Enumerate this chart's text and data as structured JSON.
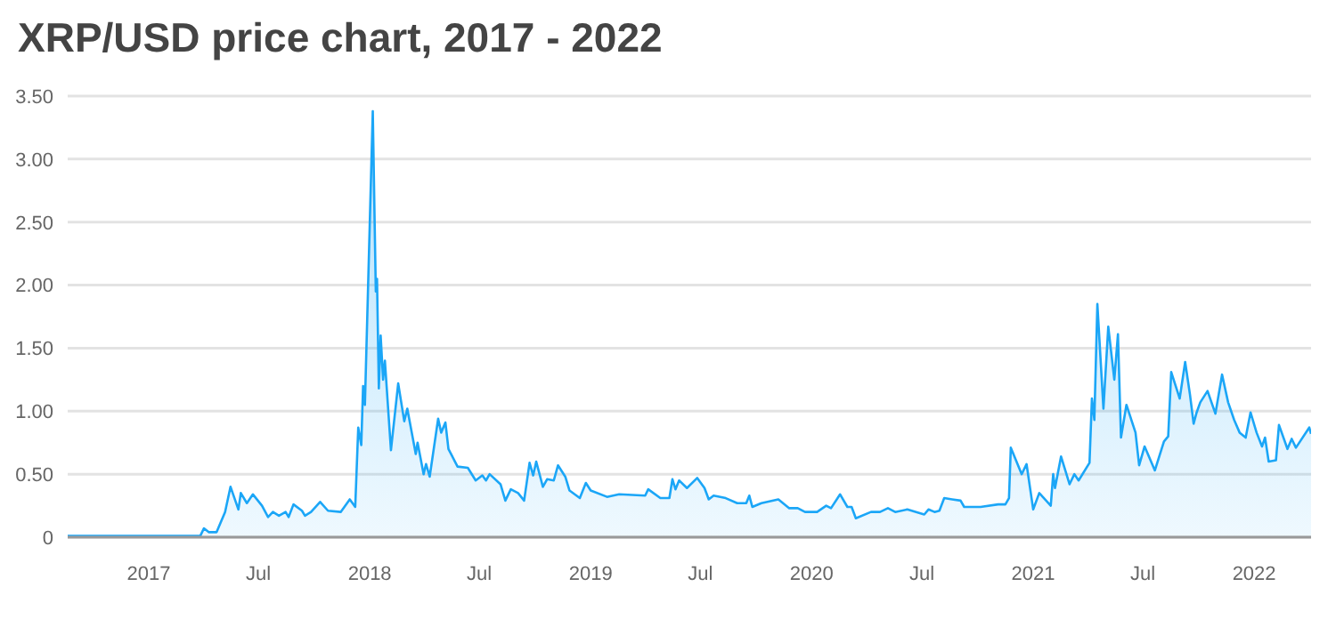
{
  "chart_data": {
    "type": "area",
    "title": "XRP/USD price chart, 2017 - 2022",
    "color": "#1ba6f7",
    "grid": "y",
    "x": [
      "2016-08-20",
      "2017-03-27",
      "2017-04-02",
      "2017-04-10",
      "2017-04-23",
      "2017-05-07",
      "2017-05-16",
      "2017-05-29",
      "2017-06-02",
      "2017-06-12",
      "2017-06-22",
      "2017-07-07",
      "2017-07-17",
      "2017-07-25",
      "2017-08-04",
      "2017-08-15",
      "2017-08-20",
      "2017-08-28",
      "2017-09-11",
      "2017-09-16",
      "2017-09-26",
      "2017-10-11",
      "2017-10-24",
      "2017-11-14",
      "2017-11-29",
      "2017-12-08",
      "2017-12-13",
      "2017-12-18",
      "2017-12-21",
      "2017-12-24",
      "2018-01-06",
      "2018-01-11",
      "2018-01-13",
      "2018-01-16",
      "2018-01-19",
      "2018-01-23",
      "2018-01-26",
      "2018-02-05",
      "2018-02-17",
      "2018-02-27",
      "2018-03-04",
      "2018-03-18",
      "2018-03-21",
      "2018-03-31",
      "2018-04-04",
      "2018-04-10",
      "2018-04-24",
      "2018-04-29",
      "2018-05-06",
      "2018-05-11",
      "2018-05-26",
      "2018-06-12",
      "2018-06-25",
      "2018-07-06",
      "2018-07-12",
      "2018-07-18",
      "2018-08-05",
      "2018-08-13",
      "2018-08-22",
      "2018-09-03",
      "2018-09-13",
      "2018-09-22",
      "2018-09-28",
      "2018-10-03",
      "2018-10-14",
      "2018-10-21",
      "2018-11-01",
      "2018-11-08",
      "2018-11-20",
      "2018-11-27",
      "2018-12-14",
      "2018-12-24",
      "2019-01-01",
      "2019-01-28",
      "2019-02-17",
      "2019-04-01",
      "2019-04-06",
      "2019-04-26",
      "2019-05-11",
      "2019-05-16",
      "2019-05-21",
      "2019-05-27",
      "2019-06-09",
      "2019-06-26",
      "2019-07-08",
      "2019-07-15",
      "2019-07-23",
      "2019-08-12",
      "2019-08-31",
      "2019-09-15",
      "2019-09-20",
      "2019-09-25",
      "2019-10-10",
      "2019-11-07",
      "2019-11-25",
      "2019-12-09",
      "2019-12-21",
      "2020-01-10",
      "2020-01-25",
      "2020-02-02",
      "2020-02-17",
      "2020-02-29",
      "2020-03-07",
      "2020-03-14",
      "2020-04-08",
      "2020-04-23",
      "2020-05-06",
      "2020-05-18",
      "2020-06-07",
      "2020-07-05",
      "2020-07-12",
      "2020-07-22",
      "2020-07-30",
      "2020-08-07",
      "2020-08-20",
      "2020-09-03",
      "2020-09-09",
      "2020-10-06",
      "2020-11-04",
      "2020-11-16",
      "2020-11-22",
      "2020-11-25",
      "2020-12-13",
      "2020-12-21",
      "2021-01-01",
      "2021-01-11",
      "2021-01-30",
      "2021-02-03",
      "2021-02-06",
      "2021-02-16",
      "2021-03-02",
      "2021-03-10",
      "2021-03-17",
      "2021-04-04",
      "2021-04-08",
      "2021-04-12",
      "2021-04-17",
      "2021-04-27",
      "2021-05-05",
      "2021-05-15",
      "2021-05-21",
      "2021-05-26",
      "2021-06-04",
      "2021-06-19",
      "2021-06-25",
      "2021-07-04",
      "2021-07-21",
      "2021-08-05",
      "2021-08-12",
      "2021-08-17",
      "2021-08-31",
      "2021-09-09",
      "2021-09-17",
      "2021-09-23",
      "2021-09-28",
      "2021-10-04",
      "2021-10-16",
      "2021-10-29",
      "2021-11-09",
      "2021-11-19",
      "2021-11-29",
      "2021-12-08",
      "2021-12-18",
      "2021-12-26",
      "2022-01-05",
      "2022-01-14",
      "2022-01-19",
      "2022-01-25",
      "2022-02-06",
      "2022-02-11",
      "2022-02-25",
      "2022-03-04",
      "2022-03-11",
      "2022-04-02",
      "2022-04-05"
    ],
    "values": [
      0.01,
      0.01,
      0.07,
      0.04,
      0.04,
      0.2,
      0.4,
      0.22,
      0.35,
      0.27,
      0.34,
      0.25,
      0.16,
      0.2,
      0.17,
      0.2,
      0.16,
      0.26,
      0.21,
      0.17,
      0.2,
      0.28,
      0.21,
      0.2,
      0.3,
      0.24,
      0.87,
      0.73,
      1.2,
      1.05,
      3.38,
      1.95,
      2.05,
      1.18,
      1.6,
      1.25,
      1.4,
      0.69,
      1.22,
      0.92,
      1.02,
      0.66,
      0.75,
      0.5,
      0.58,
      0.48,
      0.94,
      0.83,
      0.91,
      0.7,
      0.56,
      0.55,
      0.45,
      0.49,
      0.45,
      0.5,
      0.42,
      0.29,
      0.38,
      0.35,
      0.29,
      0.59,
      0.49,
      0.6,
      0.4,
      0.46,
      0.45,
      0.57,
      0.48,
      0.37,
      0.31,
      0.43,
      0.37,
      0.32,
      0.34,
      0.33,
      0.38,
      0.31,
      0.31,
      0.46,
      0.38,
      0.45,
      0.39,
      0.47,
      0.39,
      0.3,
      0.33,
      0.31,
      0.27,
      0.27,
      0.33,
      0.24,
      0.27,
      0.3,
      0.23,
      0.23,
      0.2,
      0.2,
      0.25,
      0.23,
      0.34,
      0.24,
      0.24,
      0.15,
      0.2,
      0.2,
      0.23,
      0.2,
      0.22,
      0.18,
      0.22,
      0.2,
      0.21,
      0.31,
      0.3,
      0.29,
      0.24,
      0.24,
      0.26,
      0.26,
      0.31,
      0.71,
      0.5,
      0.58,
      0.22,
      0.35,
      0.25,
      0.5,
      0.39,
      0.64,
      0.42,
      0.5,
      0.45,
      0.59,
      1.1,
      0.93,
      1.85,
      1.02,
      1.67,
      1.25,
      1.61,
      0.79,
      1.05,
      0.83,
      0.57,
      0.72,
      0.53,
      0.76,
      0.8,
      1.31,
      1.1,
      1.39,
      1.13,
      0.9,
      0.99,
      1.07,
      1.16,
      0.98,
      1.29,
      1.07,
      0.93,
      0.83,
      0.79,
      0.99,
      0.83,
      0.72,
      0.79,
      0.6,
      0.61,
      0.89,
      0.7,
      0.78,
      0.71,
      0.87,
      0.82
    ],
    "xlim": [
      "2016-08-20",
      "2022-04-05"
    ],
    "xticks": [
      {
        "value": "2017-01-01",
        "label": "2017"
      },
      {
        "value": "2017-07-01",
        "label": "Jul"
      },
      {
        "value": "2018-01-01",
        "label": "2018"
      },
      {
        "value": "2018-07-01",
        "label": "Jul"
      },
      {
        "value": "2019-01-01",
        "label": "2019"
      },
      {
        "value": "2019-07-01",
        "label": "Jul"
      },
      {
        "value": "2020-01-01",
        "label": "2020"
      },
      {
        "value": "2020-07-01",
        "label": "Jul"
      },
      {
        "value": "2021-01-01",
        "label": "2021"
      },
      {
        "value": "2021-07-01",
        "label": "Jul"
      },
      {
        "value": "2022-01-01",
        "label": "2022"
      }
    ],
    "ylim": [
      0,
      3.5
    ],
    "yticks": [
      0,
      {
        "value": 0.5,
        "label": "0.50"
      },
      {
        "value": 1,
        "label": "1.00"
      },
      {
        "value": 1.5,
        "label": "1.50"
      },
      {
        "value": 2,
        "label": "2.00"
      },
      {
        "value": 2.5,
        "label": "2.50"
      },
      {
        "value": 3,
        "label": "3.00"
      },
      {
        "value": 3.5,
        "label": "3.50"
      }
    ]
  }
}
